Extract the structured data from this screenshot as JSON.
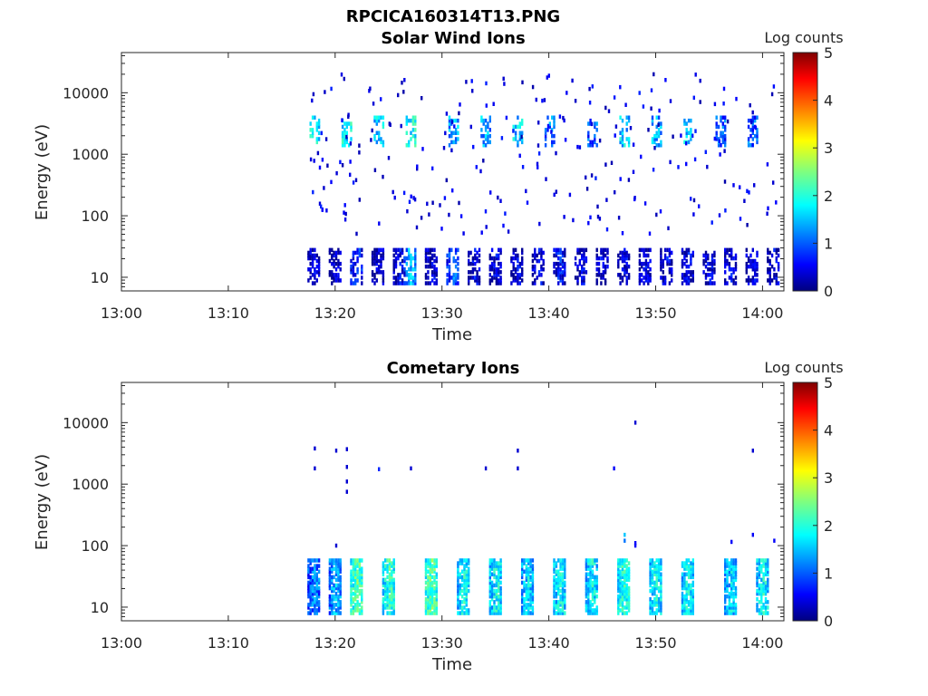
{
  "figure": {
    "title": "RPCICA160314T13.PNG"
  },
  "colors": {
    "cmap": [
      "#00007f",
      "#0000ff",
      "#007fff",
      "#00ffff",
      "#7fff7f",
      "#ffff00",
      "#ff7f00",
      "#ff0000",
      "#7f0000"
    ]
  },
  "chart_data": [
    {
      "type": "heatmap",
      "title": "Solar Wind Ions",
      "xlabel": "Time",
      "ylabel": "Energy (eV)",
      "colorbar_label": "Log counts",
      "xlim": [
        "13:00",
        "14:02"
      ],
      "ylim": [
        6,
        45000
      ],
      "yscale": "log",
      "clim": [
        0,
        5
      ],
      "x_ticks": [
        "13:00",
        "13:10",
        "13:20",
        "13:30",
        "13:40",
        "13:50",
        "14:00"
      ],
      "y_ticks": [
        10,
        100,
        1000,
        10000
      ],
      "y_tick_labels": [
        "10",
        "100",
        "1000",
        "10000"
      ],
      "c_ticks": [
        "0",
        "1",
        "2",
        "3",
        "4",
        "5"
      ],
      "low_energy_bursts": [
        {
          "t": "13:18",
          "v": 0.6
        },
        {
          "t": "13:20",
          "v": 0.5
        },
        {
          "t": "13:22",
          "v": 1.0
        },
        {
          "t": "13:24",
          "v": 0.5
        },
        {
          "t": "13:26",
          "v": 0.6
        },
        {
          "t": "13:27",
          "v": 1.6
        },
        {
          "t": "13:29",
          "v": 0.6
        },
        {
          "t": "13:31",
          "v": 1.2
        },
        {
          "t": "13:33",
          "v": 0.6
        },
        {
          "t": "13:35",
          "v": 0.6
        },
        {
          "t": "13:37",
          "v": 0.6
        },
        {
          "t": "13:39",
          "v": 0.6
        },
        {
          "t": "13:41",
          "v": 0.8
        },
        {
          "t": "13:43",
          "v": 0.6
        },
        {
          "t": "13:45",
          "v": 0.6
        },
        {
          "t": "13:47",
          "v": 0.6
        },
        {
          "t": "13:49",
          "v": 0.6
        },
        {
          "t": "13:51",
          "v": 0.6
        },
        {
          "t": "13:53",
          "v": 0.6
        },
        {
          "t": "13:55",
          "v": 0.6
        },
        {
          "t": "13:57",
          "v": 0.6
        },
        {
          "t": "13:59",
          "v": 0.6
        },
        {
          "t": "14:01",
          "v": 0.6
        }
      ],
      "high_energy_bursts": [
        {
          "t": "13:18",
          "v": 1.8
        },
        {
          "t": "13:21",
          "v": 1.8
        },
        {
          "t": "13:24",
          "v": 1.6
        },
        {
          "t": "13:27",
          "v": 1.9
        },
        {
          "t": "13:31",
          "v": 1.4
        },
        {
          "t": "13:34",
          "v": 1.4
        },
        {
          "t": "13:37",
          "v": 1.6
        },
        {
          "t": "13:40",
          "v": 1.2
        },
        {
          "t": "13:44",
          "v": 1.0
        },
        {
          "t": "13:47",
          "v": 1.6
        },
        {
          "t": "13:50",
          "v": 1.4
        },
        {
          "t": "13:53",
          "v": 1.6
        },
        {
          "t": "13:56",
          "v": 1.0
        },
        {
          "t": "13:59",
          "v": 1.0
        }
      ]
    },
    {
      "type": "heatmap",
      "title": "Cometary Ions",
      "xlabel": "Time",
      "ylabel": "Energy (eV)",
      "colorbar_label": "Log counts",
      "xlim": [
        "13:00",
        "14:02"
      ],
      "ylim": [
        6,
        45000
      ],
      "yscale": "log",
      "clim": [
        0,
        5
      ],
      "x_ticks": [
        "13:00",
        "13:10",
        "13:20",
        "13:30",
        "13:40",
        "13:50",
        "14:00"
      ],
      "y_ticks": [
        10,
        100,
        1000,
        10000
      ],
      "y_tick_labels": [
        "10",
        "100",
        "1000",
        "10000"
      ],
      "c_ticks": [
        "0",
        "1",
        "2",
        "3",
        "4",
        "5"
      ],
      "low_energy_bursts": [
        {
          "t": "13:18",
          "v": 1.4
        },
        {
          "t": "13:20",
          "v": 1.6
        },
        {
          "t": "13:22",
          "v": 2.4
        },
        {
          "t": "13:25",
          "v": 2.2
        },
        {
          "t": "13:29",
          "v": 2.4
        },
        {
          "t": "13:32",
          "v": 2.0
        },
        {
          "t": "13:35",
          "v": 2.0
        },
        {
          "t": "13:38",
          "v": 1.8
        },
        {
          "t": "13:41",
          "v": 2.0
        },
        {
          "t": "13:44",
          "v": 2.0
        },
        {
          "t": "13:47",
          "v": 2.2
        },
        {
          "t": "13:50",
          "v": 2.0
        },
        {
          "t": "13:53",
          "v": 2.0
        },
        {
          "t": "13:57",
          "v": 1.8
        },
        {
          "t": "14:00",
          "v": 2.0
        }
      ],
      "sparse_points": [
        {
          "t": "13:18",
          "e": 3800,
          "v": 0.4
        },
        {
          "t": "13:18",
          "e": 1800,
          "v": 0.4
        },
        {
          "t": "13:20",
          "e": 100,
          "v": 0.4
        },
        {
          "t": "13:20",
          "e": 3500,
          "v": 0.4
        },
        {
          "t": "13:21",
          "e": 3700,
          "v": 0.4
        },
        {
          "t": "13:21",
          "e": 1900,
          "v": 0.4
        },
        {
          "t": "13:21",
          "e": 1100,
          "v": 0.4
        },
        {
          "t": "13:21",
          "e": 750,
          "v": 0.4
        },
        {
          "t": "13:24",
          "e": 1750,
          "v": 0.8
        },
        {
          "t": "13:27",
          "e": 1800,
          "v": 0.4
        },
        {
          "t": "13:34",
          "e": 1800,
          "v": 0.4
        },
        {
          "t": "13:37",
          "e": 3500,
          "v": 0.4
        },
        {
          "t": "13:37",
          "e": 1800,
          "v": 0.4
        },
        {
          "t": "13:46",
          "e": 1800,
          "v": 0.6
        },
        {
          "t": "13:48",
          "e": 10000,
          "v": 0.4
        },
        {
          "t": "13:59",
          "e": 3500,
          "v": 0.4
        },
        {
          "t": "13:47",
          "e": 150,
          "v": 1.6
        },
        {
          "t": "13:47",
          "e": 120,
          "v": 1.2
        },
        {
          "t": "13:48",
          "e": 110,
          "v": 0.6
        },
        {
          "t": "13:48",
          "e": 100,
          "v": 0.6
        },
        {
          "t": "13:57",
          "e": 115,
          "v": 0.6
        },
        {
          "t": "13:59",
          "e": 150,
          "v": 0.6
        },
        {
          "t": "14:01",
          "e": 120,
          "v": 0.6
        }
      ]
    }
  ]
}
